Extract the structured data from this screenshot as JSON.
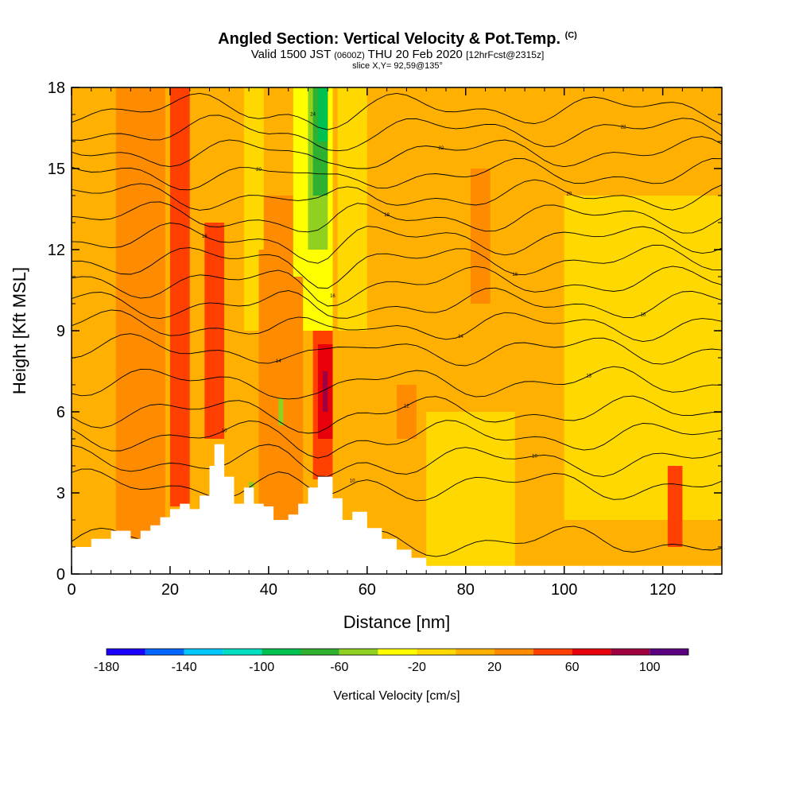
{
  "header": {
    "title": "Angled Section: Vertical Velocity & Pot.Temp.",
    "title_mark": "(C)",
    "valid_prefix": "Valid 1500 JST",
    "valid_utc": "(0600Z)",
    "valid_date": "THU 20 Feb 2020",
    "forecast": "[12hrFcst@2315z]",
    "slice": "slice X,Y= 92,59@135°"
  },
  "chart_data": {
    "type": "heatmap",
    "xlabel": "Distance [nm]",
    "ylabel": "Height [Kft MSL]",
    "xlim": [
      0,
      132
    ],
    "ylim": [
      0,
      18
    ],
    "x_ticks": [
      "0",
      "20",
      "40",
      "60",
      "80",
      "100",
      "120"
    ],
    "y_ticks": [
      "0",
      "3",
      "6",
      "9",
      "12",
      "15",
      "18"
    ],
    "colorbar": {
      "label": "Vertical Velocity [cm/s]",
      "ticks": [
        "-180",
        "-140",
        "-100",
        "-60",
        "-20",
        "20",
        "60",
        "100"
      ],
      "levels": [
        -180,
        -160,
        -140,
        -120,
        -100,
        -80,
        -60,
        -40,
        -20,
        0,
        20,
        40,
        60,
        80,
        100,
        120
      ],
      "colors": [
        "#1a00ff",
        "#0066ff",
        "#00c8ff",
        "#00e0c0",
        "#00c050",
        "#30b030",
        "#90d020",
        "#ffff00",
        "#ffd800",
        "#ffb000",
        "#ff8c00",
        "#ff4000",
        "#e8000a",
        "#a00040",
        "#5a0080"
      ]
    },
    "terrain": [
      [
        0,
        1
      ],
      [
        4,
        1
      ],
      [
        4,
        1.3
      ],
      [
        8,
        1.3
      ],
      [
        8,
        1.6
      ],
      [
        12,
        1.6
      ],
      [
        12,
        1.3
      ],
      [
        14,
        1.3
      ],
      [
        14,
        1.6
      ],
      [
        16,
        1.6
      ],
      [
        16,
        1.8
      ],
      [
        18,
        1.8
      ],
      [
        18,
        2.1
      ],
      [
        20,
        2.1
      ],
      [
        20,
        2.4
      ],
      [
        22,
        2.4
      ],
      [
        22,
        2.6
      ],
      [
        24,
        2.6
      ],
      [
        24,
        2.4
      ],
      [
        26,
        2.4
      ],
      [
        26,
        2.9
      ],
      [
        28,
        2.9
      ],
      [
        28,
        4.0
      ],
      [
        29,
        4.0
      ],
      [
        29,
        4.8
      ],
      [
        31,
        4.8
      ],
      [
        31,
        3.6
      ],
      [
        33,
        3.6
      ],
      [
        33,
        2.6
      ],
      [
        35,
        2.6
      ],
      [
        35,
        3.2
      ],
      [
        37,
        3.2
      ],
      [
        37,
        2.6
      ],
      [
        39,
        2.6
      ],
      [
        39,
        2.5
      ],
      [
        41,
        2.5
      ],
      [
        41,
        2.0
      ],
      [
        44,
        2.0
      ],
      [
        44,
        2.2
      ],
      [
        46,
        2.2
      ],
      [
        46,
        2.6
      ],
      [
        48,
        2.6
      ],
      [
        48,
        3.2
      ],
      [
        50,
        3.2
      ],
      [
        50,
        3.6
      ],
      [
        53,
        3.6
      ],
      [
        53,
        2.8
      ],
      [
        55,
        2.8
      ],
      [
        55,
        2.0
      ],
      [
        57,
        2.0
      ],
      [
        57,
        2.3
      ],
      [
        60,
        2.3
      ],
      [
        60,
        1.7
      ],
      [
        63,
        1.7
      ],
      [
        63,
        1.3
      ],
      [
        66,
        1.3
      ],
      [
        66,
        0.9
      ],
      [
        69,
        0.9
      ],
      [
        69,
        0.6
      ],
      [
        72,
        0.6
      ],
      [
        72,
        0.3
      ],
      [
        132,
        0.3
      ],
      [
        132,
        0
      ],
      [
        0,
        0
      ]
    ],
    "velocity_cells": [
      {
        "x": [
          0,
          132
        ],
        "y": [
          0,
          18
        ],
        "v": 10
      },
      {
        "x": [
          9,
          19
        ],
        "y": [
          0.5,
          18
        ],
        "v": 30
      },
      {
        "x": [
          20,
          24
        ],
        "y": [
          2.5,
          18
        ],
        "v": 50
      },
      {
        "x": [
          27,
          31
        ],
        "y": [
          5,
          13
        ],
        "v": 50
      },
      {
        "x": [
          35,
          39
        ],
        "y": [
          9,
          18
        ],
        "v": -10
      },
      {
        "x": [
          38,
          47
        ],
        "y": [
          2,
          14
        ],
        "v": 30
      },
      {
        "x": [
          45,
          49
        ],
        "y": [
          11,
          18
        ],
        "v": -30
      },
      {
        "x": [
          47,
          53
        ],
        "y": [
          9,
          18
        ],
        "v": -30
      },
      {
        "x": [
          48,
          52
        ],
        "y": [
          12,
          18
        ],
        "v": -50
      },
      {
        "x": [
          49,
          52
        ],
        "y": [
          14,
          18
        ],
        "v": -70
      },
      {
        "x": [
          50,
          52
        ],
        "y": [
          16,
          18
        ],
        "v": -90
      },
      {
        "x": [
          49,
          53
        ],
        "y": [
          3.5,
          9
        ],
        "v": 50
      },
      {
        "x": [
          50,
          53
        ],
        "y": [
          5,
          8.5
        ],
        "v": 70
      },
      {
        "x": [
          51,
          52
        ],
        "y": [
          6,
          7.5
        ],
        "v": 90
      },
      {
        "x": [
          54,
          60
        ],
        "y": [
          9,
          18
        ],
        "v": -10
      },
      {
        "x": [
          66,
          70
        ],
        "y": [
          5,
          7
        ],
        "v": 30
      },
      {
        "x": [
          72,
          90
        ],
        "y": [
          0.3,
          6
        ],
        "v": -10
      },
      {
        "x": [
          81,
          85
        ],
        "y": [
          10,
          15
        ],
        "v": 30
      },
      {
        "x": [
          100,
          132
        ],
        "y": [
          2,
          14
        ],
        "v": -10
      },
      {
        "x": [
          121,
          124
        ],
        "y": [
          1,
          4
        ],
        "v": 50
      },
      {
        "x": [
          36,
          39
        ],
        "y": [
          12,
          18
        ],
        "v": -10
      },
      {
        "x": [
          36,
          37
        ],
        "y": [
          2.6,
          3.4
        ],
        "v": -50
      },
      {
        "x": [
          42,
          43
        ],
        "y": [
          5.5,
          6.5
        ],
        "v": -50
      }
    ],
    "theta_lines": [
      {
        "label": "10",
        "base": 1.2
      },
      {
        "label": "10",
        "base": 3.3
      },
      {
        "label": "10",
        "base": 4.2
      },
      {
        "label": "10",
        "base": 5.1
      },
      {
        "label": "12",
        "base": 6.0
      },
      {
        "label": "13",
        "base": 7.1
      },
      {
        "label": "14",
        "base": 8.3
      },
      {
        "label": "14",
        "base": 9.2
      },
      {
        "label": "16",
        "base": 10.0
      },
      {
        "label": "16",
        "base": 10.8
      },
      {
        "label": "16",
        "base": 11.6
      },
      {
        "label": "18",
        "base": 12.4
      },
      {
        "label": "18",
        "base": 13.2
      },
      {
        "label": "20",
        "base": 14.0
      },
      {
        "label": "20",
        "base": 14.8
      },
      {
        "label": "22",
        "base": 15.6
      },
      {
        "label": "22",
        "base": 16.4
      },
      {
        "label": "24",
        "base": 17.2
      }
    ]
  }
}
